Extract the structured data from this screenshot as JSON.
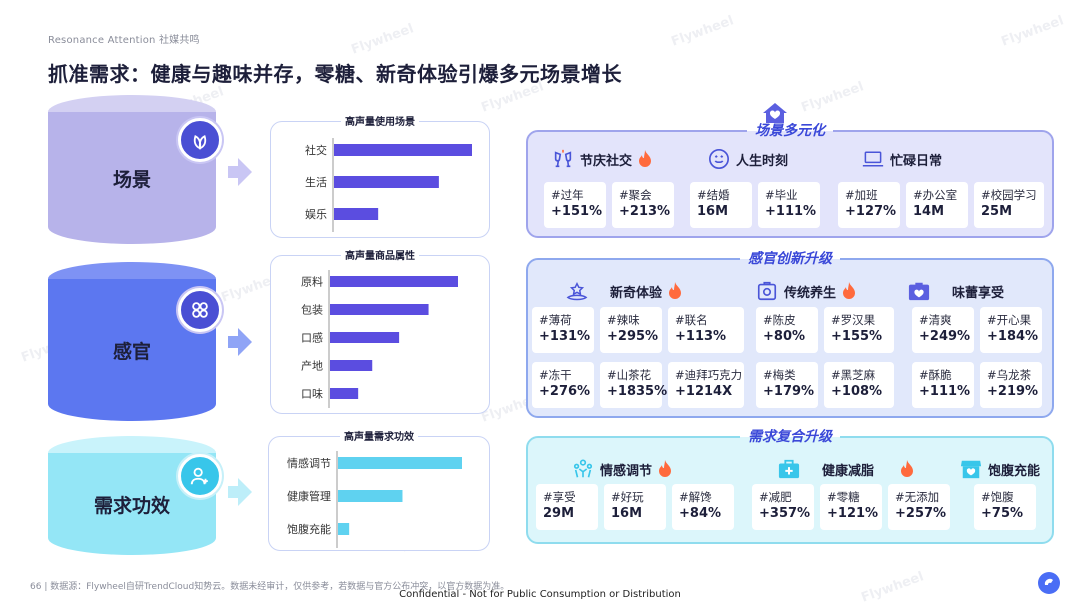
{
  "header": {
    "brand": "Resonance Attention 社媒共鸣",
    "title": "抓准需求：健康与趣味并存，零糖、新奇体验引爆多元场景增长"
  },
  "watermark": "Flywheel",
  "left": {
    "cylinders": [
      {
        "label": "场景",
        "icon": "leaf-icon"
      },
      {
        "label": "感官",
        "icon": "grid-flower-icon"
      },
      {
        "label": "需求功效",
        "icon": "user-add-icon"
      }
    ]
  },
  "chart_data": [
    {
      "type": "bar",
      "title": "高声量使用场景",
      "categories": [
        "社交",
        "生活",
        "娱乐"
      ],
      "values": [
        100,
        76,
        32
      ],
      "xlim": [
        0,
        100
      ]
    },
    {
      "type": "bar",
      "title": "高声量商品属性",
      "categories": [
        "原料",
        "包装",
        "口感",
        "产地",
        "口味"
      ],
      "values": [
        100,
        77,
        54,
        33,
        22
      ],
      "xlim": [
        0,
        100
      ]
    },
    {
      "type": "bar",
      "title": "高声量需求功效",
      "categories": [
        "情感调节",
        "健康管理",
        "饱腹充能"
      ],
      "values": [
        100,
        52,
        9
      ],
      "xlim": [
        0,
        100
      ]
    }
  ],
  "cards": [
    {
      "title": "场景多元化",
      "groups": [
        {
          "label": "节庆社交",
          "icon": "cheers-icon",
          "hot": true,
          "tags": [
            {
              "t": "#过年",
              "v": "+151%"
            },
            {
              "t": "#聚会",
              "v": "+213%"
            }
          ]
        },
        {
          "label": "人生时刻",
          "icon": "smile-icon",
          "hot": false,
          "tags": [
            {
              "t": "#结婚",
              "v": "16M"
            },
            {
              "t": "#毕业",
              "v": "+111%"
            }
          ]
        },
        {
          "label": "忙碌日常",
          "icon": "laptop-icon",
          "hot": false,
          "tags": [
            {
              "t": "#加班",
              "v": "+127%"
            },
            {
              "t": "#办公室",
              "v": "14M"
            },
            {
              "t": "#校园学习",
              "v": "25M"
            }
          ]
        }
      ]
    },
    {
      "title": "感官创新升级",
      "groups": [
        {
          "label": "新奇体验",
          "icon": "star-hat-icon",
          "hot": true,
          "tags": [
            {
              "t": "#薄荷",
              "v": "+131%"
            },
            {
              "t": "#辣味",
              "v": "+295%"
            },
            {
              "t": "#联名",
              "v": "+113%"
            },
            {
              "t": "#冻干",
              "v": "+276%"
            },
            {
              "t": "#山茶花",
              "v": "+1835%"
            },
            {
              "t": "#迪拜巧克力",
              "v": "+1214X"
            }
          ]
        },
        {
          "label": "传统养生",
          "icon": "medicine-box-icon",
          "hot": true,
          "tags": [
            {
              "t": "#陈皮",
              "v": "+80%"
            },
            {
              "t": "#罗汉果",
              "v": "+155%"
            },
            {
              "t": "#梅类",
              "v": "+179%"
            },
            {
              "t": "#黑芝麻",
              "v": "+108%"
            }
          ]
        },
        {
          "label": "味蕾享受",
          "icon": "heart-box-icon",
          "hot": false,
          "tags": [
            {
              "t": "#清爽",
              "v": "+249%"
            },
            {
              "t": "#开心果",
              "v": "+184%"
            },
            {
              "t": "#酥脆",
              "v": "+111%"
            },
            {
              "t": "#乌龙茶",
              "v": "+219%"
            }
          ]
        }
      ]
    },
    {
      "title": "需求复合升级",
      "groups": [
        {
          "label": "情感调节",
          "icon": "people-icon",
          "hot": true,
          "tags": [
            {
              "t": "#享受",
              "v": "29M"
            },
            {
              "t": "#好玩",
              "v": "16M"
            },
            {
              "t": "#解馋",
              "v": "+84%"
            }
          ]
        },
        {
          "label": "健康减脂",
          "icon": "medical-kit-icon",
          "hot": true,
          "tags": [
            {
              "t": "#减肥",
              "v": "+357%"
            },
            {
              "t": "#零糖",
              "v": "+121%"
            },
            {
              "t": "#无添加",
              "v": "+257%"
            }
          ]
        },
        {
          "label": "饱腹充能",
          "icon": "shop-icon",
          "hot": false,
          "tags": [
            {
              "t": "#饱腹",
              "v": "+75%"
            }
          ]
        }
      ]
    }
  ],
  "footer": {
    "page": "66",
    "source": "数据源：Flywheel自研TrendCloud知势云。数据未经审计，仅供参考，若数据与官方公布冲突，以官方数据为准。",
    "confidential": "Confidential - Not for Public Consumption or Distribution"
  },
  "colors": {
    "accent": "#3a48d8",
    "bar": "#5b4de0",
    "bar3": "#5fd2f0",
    "fire": "#ff6a3d"
  }
}
